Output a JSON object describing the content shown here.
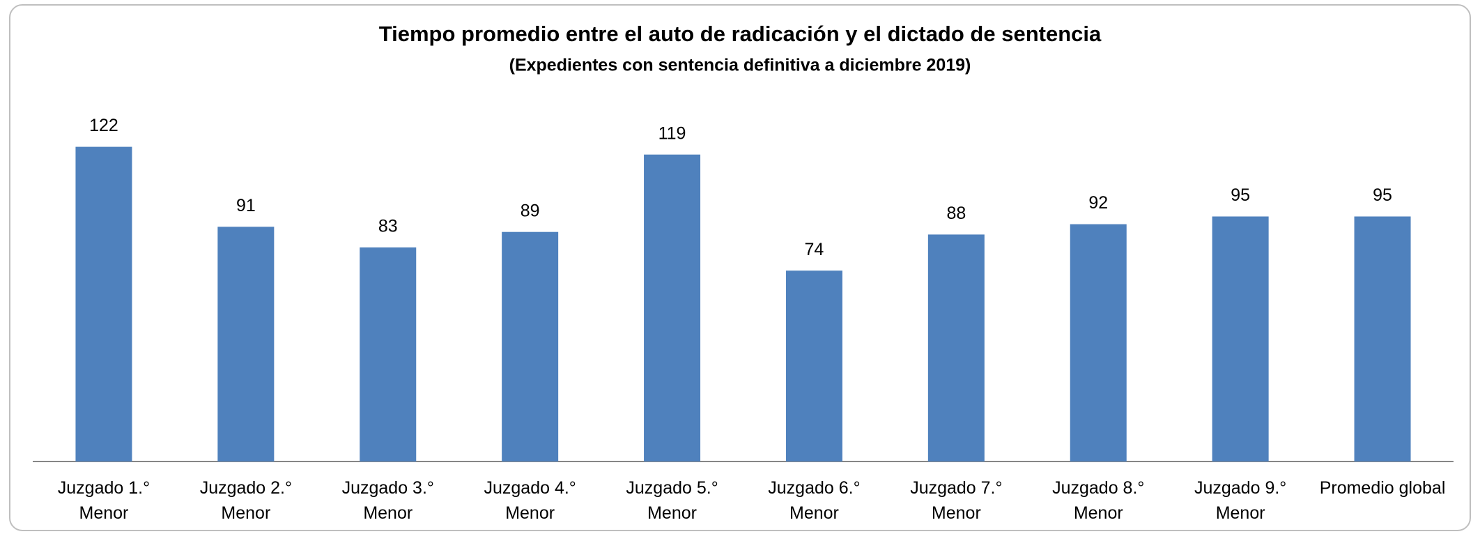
{
  "chart_data": {
    "type": "bar",
    "title": "Tiempo promedio entre el auto de radicación y el dictado de sentencia",
    "subtitle": "(Expedientes con sentencia definitiva a diciembre 2019)",
    "categories": [
      "Juzgado 1.° Menor",
      "Juzgado 2.° Menor",
      "Juzgado 3.° Menor",
      "Juzgado 4.° Menor",
      "Juzgado 5.° Menor",
      "Juzgado 6.° Menor",
      "Juzgado 7.° Menor",
      "Juzgado 8.° Menor",
      "Juzgado 9.° Menor",
      "Promedio global"
    ],
    "values": [
      122,
      91,
      83,
      89,
      119,
      74,
      88,
      92,
      95,
      95
    ],
    "color": "#4f81bd",
    "ylim": [
      0,
      140
    ]
  }
}
